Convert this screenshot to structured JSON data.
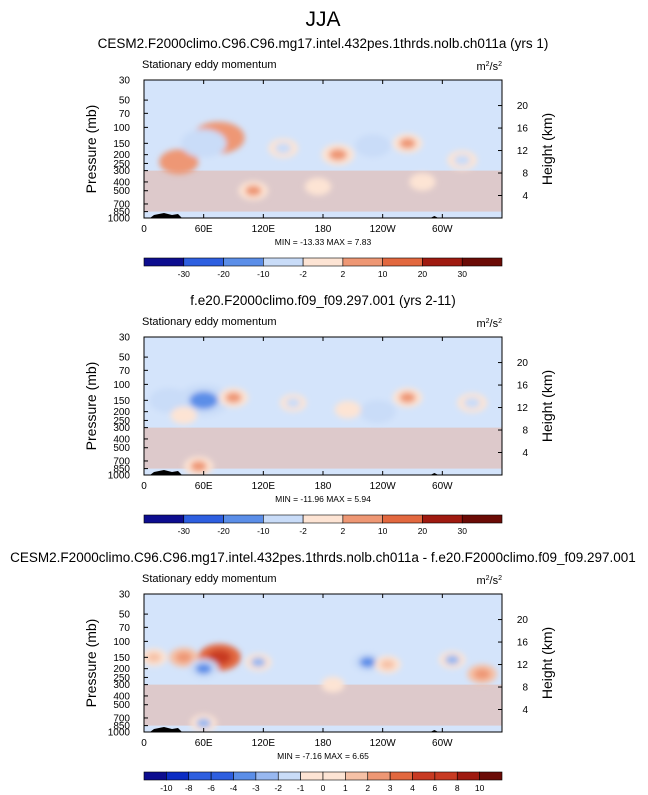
{
  "figure_title": "JJA",
  "colors": {
    "scale": [
      "#0d0d8f",
      "#0b2cc4",
      "#2e5fe0",
      "#5b8ee8",
      "#98b8f0",
      "#c9dcf8",
      "#fde4d4",
      "#f6c1a6",
      "#ee9774",
      "#e2683f",
      "#c83a22",
      "#9f1a10",
      "#6b0b06"
    ],
    "background_field": "#d4e4fb"
  },
  "chart_data": [
    {
      "type": "heatmap",
      "panel_title": "CESM2.F2000climo.C96.C96.mg17.intel.432pes.1thrds.nolb.ch011a (yrs 1)",
      "title": "Stationary eddy momentum",
      "units": "m²/s²",
      "units_base": "m",
      "units_num_exp": "2",
      "units_den": "/s",
      "units_den_exp": "2",
      "xlabel": "",
      "ylabel": "Pressure (mb)",
      "ylabel_right": "Height (km)",
      "x_ticks": [
        "0",
        "60E",
        "120E",
        "180",
        "120W",
        "60W"
      ],
      "x_tick_values": [
        0,
        60,
        120,
        180,
        240,
        300
      ],
      "xlim": [
        0,
        360
      ],
      "y_ticks": [
        "30",
        "50",
        "70",
        "100",
        "150",
        "200",
        "250",
        "300",
        "400",
        "500",
        "700",
        "850",
        "1000"
      ],
      "y_tick_values": [
        30,
        50,
        70,
        100,
        150,
        200,
        250,
        300,
        400,
        500,
        700,
        850,
        1000
      ],
      "ylim": [
        30,
        1000
      ],
      "height_ticks": [
        "4",
        "8",
        "12",
        "16",
        "20"
      ],
      "height_tick_values": [
        4,
        8,
        12,
        16,
        20
      ],
      "stats": "MIN = -13.33  MAX =  7.83",
      "colorbar_labels": [
        "-30",
        "-20",
        "-10",
        "-2",
        "2",
        "10",
        "20",
        "30"
      ],
      "colorbar_levels": [
        -30,
        -20,
        -10,
        -2,
        2,
        10,
        20,
        30
      ],
      "features": [
        {
          "lon": 75,
          "p": 130,
          "value": 10
        },
        {
          "lon": 35,
          "p": 240,
          "value": 6
        },
        {
          "lon": 60,
          "p": 150,
          "value": -8
        },
        {
          "lon": 230,
          "p": 160,
          "value": -5
        },
        {
          "lon": 195,
          "p": 200,
          "value": 4
        },
        {
          "lon": 265,
          "p": 150,
          "value": 3
        },
        {
          "lon": 140,
          "p": 170,
          "value": -3
        },
        {
          "lon": 320,
          "p": 230,
          "value": -3
        },
        {
          "lon": 110,
          "p": 500,
          "value": 3
        },
        {
          "lon": 175,
          "p": 450,
          "value": 2
        },
        {
          "lon": 280,
          "p": 400,
          "value": 2
        }
      ]
    },
    {
      "type": "heatmap",
      "panel_title": "f.e20.F2000climo.f09_f09.297.001 (yrs 2-11)",
      "title": "Stationary eddy momentum",
      "units": "m²/s²",
      "units_base": "m",
      "units_num_exp": "2",
      "units_den": "/s",
      "units_den_exp": "2",
      "xlabel": "",
      "ylabel": "Pressure (mb)",
      "ylabel_right": "Height (km)",
      "x_ticks": [
        "0",
        "60E",
        "120E",
        "180",
        "120W",
        "60W"
      ],
      "x_tick_values": [
        0,
        60,
        120,
        180,
        240,
        300
      ],
      "xlim": [
        0,
        360
      ],
      "y_ticks": [
        "30",
        "50",
        "70",
        "100",
        "150",
        "200",
        "250",
        "300",
        "400",
        "500",
        "700",
        "850",
        "1000"
      ],
      "y_tick_values": [
        30,
        50,
        70,
        100,
        150,
        200,
        250,
        300,
        400,
        500,
        700,
        850,
        1000
      ],
      "ylim": [
        30,
        1000
      ],
      "height_ticks": [
        "4",
        "8",
        "12",
        "16",
        "20"
      ],
      "height_tick_values": [
        4,
        8,
        12,
        16,
        20
      ],
      "stats": "MIN = -11.96  MAX =  5.94",
      "colorbar_labels": [
        "-30",
        "-20",
        "-10",
        "-2",
        "2",
        "10",
        "20",
        "30"
      ],
      "colorbar_levels": [
        -30,
        -20,
        -10,
        -2,
        2,
        10,
        20,
        30
      ],
      "features": [
        {
          "lon": 60,
          "p": 150,
          "value": -10
        },
        {
          "lon": 25,
          "p": 150,
          "value": -6
        },
        {
          "lon": 90,
          "p": 140,
          "value": 3
        },
        {
          "lon": 40,
          "p": 220,
          "value": 2
        },
        {
          "lon": 235,
          "p": 200,
          "value": -5
        },
        {
          "lon": 265,
          "p": 140,
          "value": 3
        },
        {
          "lon": 205,
          "p": 190,
          "value": 2
        },
        {
          "lon": 330,
          "p": 160,
          "value": -3
        },
        {
          "lon": 150,
          "p": 160,
          "value": -2
        },
        {
          "lon": 55,
          "p": 800,
          "value": 3
        }
      ]
    },
    {
      "type": "heatmap",
      "panel_title": "CESM2.F2000climo.C96.C96.mg17.intel.432pes.1thrds.nolb.ch011a - f.e20.F2000climo.f09_f09.297.001",
      "title": "Stationary eddy momentum",
      "units": "m²/s²",
      "units_base": "m",
      "units_num_exp": "2",
      "units_den": "/s",
      "units_den_exp": "2",
      "xlabel": "",
      "ylabel": "Pressure (mb)",
      "ylabel_right": "Height (km)",
      "x_ticks": [
        "0",
        "60E",
        "120E",
        "180",
        "120W",
        "60W"
      ],
      "x_tick_values": [
        0,
        60,
        120,
        180,
        240,
        300
      ],
      "xlim": [
        0,
        360
      ],
      "y_ticks": [
        "30",
        "50",
        "70",
        "100",
        "150",
        "200",
        "250",
        "300",
        "400",
        "500",
        "700",
        "850",
        "1000"
      ],
      "y_tick_values": [
        30,
        50,
        70,
        100,
        150,
        200,
        250,
        300,
        400,
        500,
        700,
        850,
        1000
      ],
      "ylim": [
        30,
        1000
      ],
      "height_ticks": [
        "4",
        "8",
        "12",
        "16",
        "20"
      ],
      "height_tick_values": [
        4,
        8,
        12,
        16,
        20
      ],
      "stats": "MIN = -7.16  MAX =  6.65",
      "colorbar_labels": [
        "-10",
        "-8",
        "-6",
        "-4",
        "-3",
        "-2",
        "-1",
        "0",
        "1",
        "2",
        "3",
        "4",
        "6",
        "8",
        "10"
      ],
      "colorbar_levels": [
        -10,
        -8,
        -6,
        -4,
        -3,
        -2,
        -1,
        0,
        1,
        2,
        3,
        4,
        6,
        8,
        10
      ],
      "features": [
        {
          "lon": 76,
          "p": 150,
          "value": 7
        },
        {
          "lon": 40,
          "p": 150,
          "value": 3
        },
        {
          "lon": 10,
          "p": 150,
          "value": 2
        },
        {
          "lon": 60,
          "p": 200,
          "value": -3
        },
        {
          "lon": 115,
          "p": 170,
          "value": -2
        },
        {
          "lon": 225,
          "p": 170,
          "value": -3
        },
        {
          "lon": 245,
          "p": 180,
          "value": 2
        },
        {
          "lon": 340,
          "p": 230,
          "value": 3
        },
        {
          "lon": 310,
          "p": 160,
          "value": -2
        },
        {
          "lon": 190,
          "p": 300,
          "value": 1
        },
        {
          "lon": 60,
          "p": 800,
          "value": -2
        }
      ]
    }
  ]
}
